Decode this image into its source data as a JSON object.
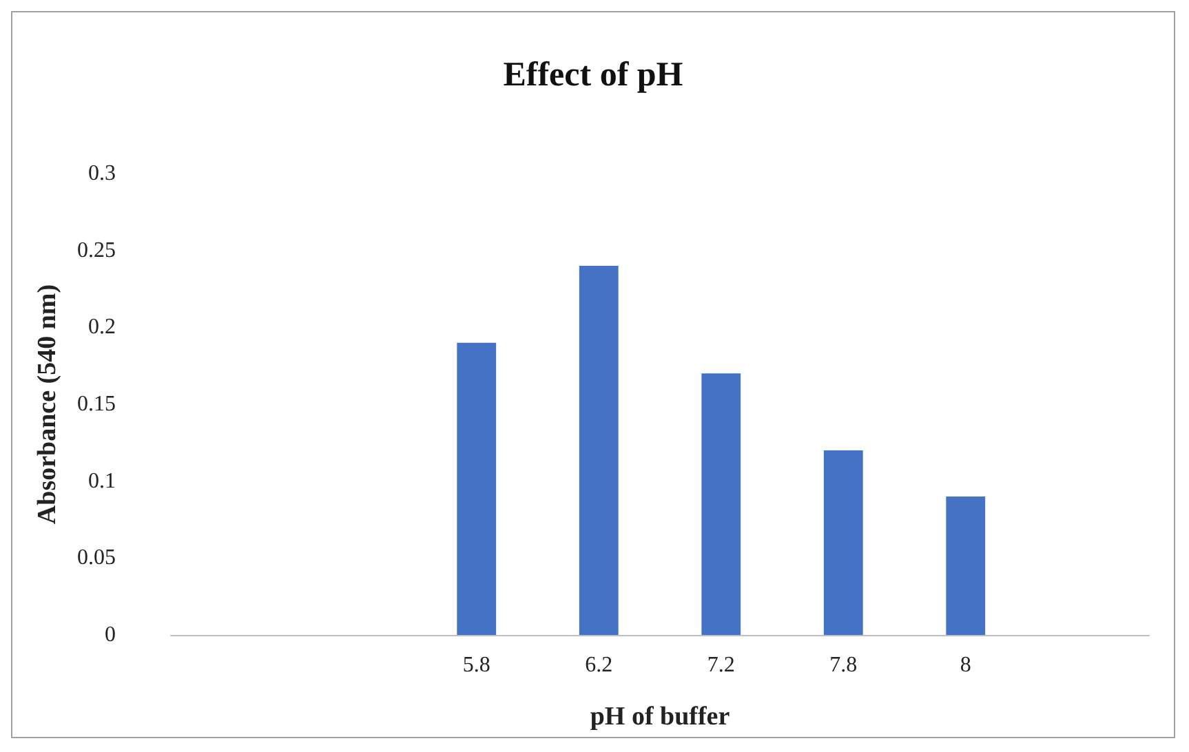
{
  "chart_data": {
    "type": "bar",
    "title": "Effect of pH",
    "xlabel": "pH of buffer",
    "ylabel": "Absorbance (540 nm)",
    "categories": [
      null,
      null,
      "5.8",
      "6.2",
      "7.2",
      "7.8",
      "8",
      null
    ],
    "values": [
      null,
      null,
      0.19,
      0.24,
      0.17,
      0.12,
      0.09,
      null
    ],
    "color": "#4472c4",
    "ylim": [
      0,
      0.3
    ],
    "yticks": [
      0,
      0.05,
      0.1,
      0.15,
      0.2,
      0.25,
      0.3
    ],
    "grid": false
  }
}
